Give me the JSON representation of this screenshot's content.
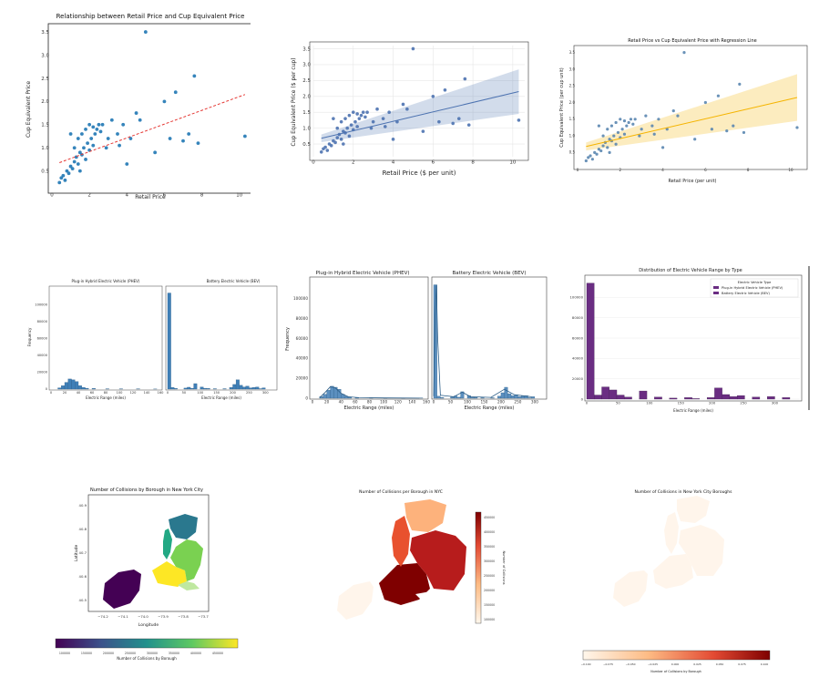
{
  "scatter_charts": [
    {
      "title": "Relationship between Retail Price and Cup Equivalent Price",
      "xlabel": "Retail Price",
      "ylabel": "Cup Equivalent Price",
      "xticks": [
        "0",
        "2",
        "4",
        "6",
        "8",
        "10"
      ],
      "yticks": [
        "0.5",
        "1.0",
        "1.5",
        "2.0",
        "2.5",
        "3.0",
        "3.5"
      ]
    },
    {
      "title": "",
      "xlabel": "Retail Price ($ per unit)",
      "ylabel": "Cup Equivalent Price ($ per cup)",
      "xticks": [
        "0",
        "2",
        "4",
        "6",
        "8",
        "10"
      ],
      "yticks": [
        "0.5",
        "1.0",
        "1.5",
        "2.0",
        "2.5",
        "3.0",
        "3.5"
      ]
    },
    {
      "title": "Retail Price vs Cup Equivalent Price with Regression Line",
      "xlabel": "Retail Price (per unit)",
      "ylabel": "Cup Equivalent Price (per cup unit)",
      "xticks": [
        "0",
        "2",
        "4",
        "6",
        "8",
        "10"
      ],
      "yticks": [
        "0.5",
        "1.0",
        "1.5",
        "2.0",
        "2.5",
        "3.0",
        "3.5"
      ]
    }
  ],
  "hist_charts": [
    {
      "left": {
        "title": "Plug-in Hybrid Electric Vehicle (PHEV)",
        "xlabel": "Electric Range (miles)",
        "ylabel": "Frequency",
        "xticks": [
          "0",
          "20",
          "40",
          "60",
          "80",
          "100",
          "120",
          "140",
          "160"
        ],
        "yticks": [
          "0",
          "20000",
          "40000",
          "60000",
          "80000",
          "100000"
        ]
      },
      "right": {
        "title": "Battery Electric Vehicle (BEV)",
        "xlabel": "Electric Range (miles)",
        "xticks": [
          "0",
          "50",
          "100",
          "150",
          "200",
          "250",
          "300"
        ]
      }
    },
    {
      "left": {
        "title": "Plug-in Hybrid Electric Vehicle (PHEV)",
        "xlabel": "Electric Range (miles)",
        "ylabel": "Frequency",
        "xticks": [
          "0",
          "20",
          "40",
          "60",
          "80",
          "100",
          "120",
          "140",
          "160"
        ],
        "yticks": [
          "0",
          "20000",
          "40000",
          "60000",
          "80000",
          "100000"
        ]
      },
      "right": {
        "title": "Battery Electric Vehicle (BEV)",
        "xlabel": "Electric Range (miles)",
        "xticks": [
          "0",
          "50",
          "100",
          "150",
          "200",
          "250",
          "300"
        ]
      }
    },
    {
      "title": "Distribution of Electric Vehicle Range by Type",
      "xlabel": "Electric Range (miles)",
      "ylabel": "",
      "legend_title": "Electric Vehicle Type",
      "legend_entries": [
        "Plug-in Hybrid Electric Vehicle (PHEV)",
        "Battery Electric Vehicle (BEV)"
      ],
      "xticks": [
        "0",
        "50",
        "100",
        "150",
        "200",
        "250",
        "300"
      ],
      "yticks": [
        "0",
        "20000",
        "40000",
        "60000",
        "80000",
        "100000"
      ]
    }
  ],
  "map_charts": [
    {
      "title": "Number of Collisions by Borough in New York City",
      "xlabel": "Longitude",
      "ylabel": "Latitude",
      "xticks": [
        "−74.2",
        "−74.1",
        "−74.0",
        "−73.9",
        "−73.8",
        "−73.7"
      ],
      "yticks": [
        "40.5",
        "40.6",
        "40.7",
        "40.8",
        "40.9"
      ],
      "cbar_label": "Number of Collisions by Borough",
      "cbar_ticks": [
        "100000",
        "150000",
        "200000",
        "250000",
        "300000",
        "350000",
        "400000",
        "450000"
      ]
    },
    {
      "title": "Number of Collisions per Borough in NYC",
      "cbar_label": "Number of Collisions",
      "cbar_ticks": [
        "100000",
        "150000",
        "200000",
        "250000",
        "300000",
        "350000",
        "400000",
        "450000"
      ]
    },
    {
      "title": "Number of Collisions in New York City Boroughs",
      "cbar_label": "Number of Collisions by Borough",
      "cbar_ticks": [
        "−0.100",
        "−0.075",
        "−0.050",
        "−0.025",
        "0.000",
        "0.025",
        "0.050",
        "0.075",
        "0.100"
      ]
    }
  ],
  "colors": {
    "scatter_blue": "#1f77b4",
    "seaborn_blue": "#4c72b0",
    "regression_red": "#e53935",
    "regression_orange": "#f5b400",
    "phev_purple": "#6a2d82",
    "hist_blue": "#3f7fb7",
    "viridis_purple": "#440154",
    "viridis_yellow": "#fde725"
  },
  "chart_data": [
    {
      "type": "scatter",
      "title": "Relationship between Retail Price and Cup Equivalent Price",
      "xlabel": "Retail Price",
      "ylabel": "Cup Equivalent Price",
      "xlim": [
        0,
        10.5
      ],
      "ylim": [
        0.1,
        3.6
      ],
      "points": [
        [
          0.4,
          0.25
        ],
        [
          0.5,
          0.35
        ],
        [
          0.6,
          0.4
        ],
        [
          0.7,
          0.3
        ],
        [
          0.8,
          0.5
        ],
        [
          0.9,
          0.45
        ],
        [
          1.0,
          0.6
        ],
        [
          1.1,
          0.55
        ],
        [
          1.2,
          0.7
        ],
        [
          1.3,
          0.8
        ],
        [
          1.4,
          0.65
        ],
        [
          1.5,
          0.9
        ],
        [
          1.6,
          0.85
        ],
        [
          1.7,
          1.0
        ],
        [
          1.8,
          0.75
        ],
        [
          1.9,
          1.1
        ],
        [
          2.0,
          0.95
        ],
        [
          2.1,
          1.2
        ],
        [
          2.2,
          1.05
        ],
        [
          2.3,
          1.3
        ],
        [
          2.4,
          1.4
        ],
        [
          2.5,
          1.5
        ],
        [
          2.6,
          1.35
        ],
        [
          2.7,
          1.5
        ],
        [
          1.2,
          1.0
        ],
        [
          1.4,
          1.2
        ],
        [
          1.6,
          1.3
        ],
        [
          1.8,
          1.4
        ],
        [
          2.0,
          1.5
        ],
        [
          2.2,
          1.45
        ],
        [
          1.0,
          1.3
        ],
        [
          3.0,
          1.2
        ],
        [
          3.2,
          1.6
        ],
        [
          3.5,
          1.3
        ],
        [
          3.8,
          1.5
        ],
        [
          4.0,
          0.65
        ],
        [
          4.2,
          1.2
        ],
        [
          4.5,
          1.75
        ],
        [
          4.7,
          1.6
        ],
        [
          5.0,
          3.5
        ],
        [
          5.5,
          0.9
        ],
        [
          6.0,
          2.0
        ],
        [
          6.3,
          1.2
        ],
        [
          6.6,
          2.2
        ],
        [
          7.0,
          1.15
        ],
        [
          7.3,
          1.3
        ],
        [
          7.6,
          2.55
        ],
        [
          7.8,
          1.1
        ],
        [
          10.3,
          1.25
        ],
        [
          1.5,
          0.5
        ],
        [
          2.9,
          1.0
        ],
        [
          3.6,
          1.05
        ]
      ],
      "regression": {
        "x": [
          0.4,
          10.3
        ],
        "y": [
          0.68,
          2.15
        ]
      }
    },
    {
      "type": "scatter",
      "xlabel": "Retail Price ($ per unit)",
      "ylabel": "Cup Equivalent Price ($ per cup)",
      "xlim": [
        0,
        10.6
      ],
      "ylim": [
        0.1,
        3.6
      ],
      "regression": {
        "x": [
          0.4,
          10.3
        ],
        "y": [
          0.68,
          2.15
        ]
      }
    },
    {
      "type": "scatter",
      "title": "Retail Price vs Cup Equivalent Price with Regression Line",
      "xlabel": "Retail Price (per unit)",
      "ylabel": "Cup Equivalent Price (per cup unit)",
      "xlim": [
        0,
        10.6
      ],
      "ylim": [
        0.1,
        3.6
      ],
      "regression": {
        "x": [
          0.4,
          10.3
        ],
        "y": [
          0.68,
          2.15
        ]
      }
    },
    {
      "type": "bar",
      "title": "Plug-in Hybrid Electric Vehicle (PHEV)",
      "xlabel": "Electric Range (miles)",
      "ylabel": "Frequency",
      "xlim": [
        0,
        160
      ],
      "ylim": [
        0,
        120000
      ],
      "bins": [
        [
          10,
          15,
          1500
        ],
        [
          15,
          20,
          4000
        ],
        [
          20,
          25,
          8000
        ],
        [
          25,
          30,
          12000
        ],
        [
          30,
          35,
          11000
        ],
        [
          35,
          40,
          9000
        ],
        [
          40,
          45,
          4000
        ],
        [
          45,
          50,
          2000
        ],
        [
          50,
          55,
          1000
        ],
        [
          60,
          65,
          800
        ],
        [
          80,
          85,
          400
        ],
        [
          100,
          105,
          300
        ],
        [
          125,
          130,
          200
        ],
        [
          150,
          155,
          150
        ]
      ]
    },
    {
      "type": "bar",
      "title": "Battery Electric Vehicle (BEV)",
      "xlabel": "Electric Range (miles)",
      "xlim": [
        0,
        330
      ],
      "ylim": [
        0,
        120000
      ],
      "bins": [
        [
          0,
          10,
          114000
        ],
        [
          10,
          20,
          2000
        ],
        [
          20,
          30,
          800
        ],
        [
          50,
          60,
          1200
        ],
        [
          60,
          70,
          2200
        ],
        [
          70,
          80,
          1000
        ],
        [
          80,
          90,
          6500
        ],
        [
          100,
          110,
          2500
        ],
        [
          110,
          120,
          1000
        ],
        [
          120,
          130,
          800
        ],
        [
          140,
          150,
          500
        ],
        [
          170,
          180,
          500
        ],
        [
          190,
          200,
          2000
        ],
        [
          200,
          210,
          5500
        ],
        [
          210,
          220,
          11000
        ],
        [
          220,
          230,
          4500
        ],
        [
          230,
          240,
          2500
        ],
        [
          240,
          250,
          3500
        ],
        [
          250,
          260,
          1500
        ],
        [
          260,
          270,
          2000
        ],
        [
          270,
          280,
          2500
        ],
        [
          280,
          290,
          500
        ],
        [
          290,
          300,
          1500
        ]
      ]
    },
    {
      "type": "bar",
      "title": "Distribution of Electric Vehicle Range by Type",
      "xlabel": "Electric Range (miles)",
      "xlim": [
        0,
        340
      ],
      "ylim": [
        0,
        120000
      ],
      "legend": [
        "Plug-in Hybrid Electric Vehicle (PHEV)",
        "Battery Electric Vehicle (BEV)"
      ],
      "bins": [
        [
          0,
          12,
          114000
        ],
        [
          12,
          24,
          4000
        ],
        [
          24,
          36,
          12000
        ],
        [
          36,
          48,
          9000
        ],
        [
          48,
          60,
          4000
        ],
        [
          60,
          72,
          2000
        ],
        [
          84,
          96,
          8000
        ],
        [
          108,
          120,
          2000
        ],
        [
          132,
          144,
          1000
        ],
        [
          156,
          168,
          1500
        ],
        [
          168,
          180,
          500
        ],
        [
          192,
          204,
          1500
        ],
        [
          204,
          216,
          11000
        ],
        [
          216,
          228,
          4500
        ],
        [
          228,
          240,
          2500
        ],
        [
          240,
          252,
          3500
        ],
        [
          264,
          276,
          2000
        ],
        [
          288,
          300,
          2500
        ],
        [
          312,
          324,
          1500
        ]
      ]
    },
    {
      "type": "heatmap",
      "title": "Number of Collisions by Borough in New York City",
      "xlabel": "Longitude",
      "ylabel": "Latitude",
      "xlim": [
        -74.26,
        -73.68
      ],
      "ylim": [
        40.48,
        40.93
      ],
      "colorbar": {
        "label": "Number of Collisions by Borough",
        "range": [
          60000,
          470000
        ],
        "colormap": "viridis"
      }
    },
    {
      "type": "heatmap",
      "title": "Number of Collisions per Borough in NYC",
      "colorbar": {
        "label": "Number of Collisions",
        "range": [
          60000,
          470000
        ],
        "colormap": "OrRd"
      }
    },
    {
      "type": "heatmap",
      "title": "Number of Collisions in New York City Boroughs",
      "colorbar": {
        "label": "Number of Collisions by Borough",
        "range": [
          -0.1,
          0.1
        ],
        "colormap": "OrRd"
      }
    }
  ]
}
